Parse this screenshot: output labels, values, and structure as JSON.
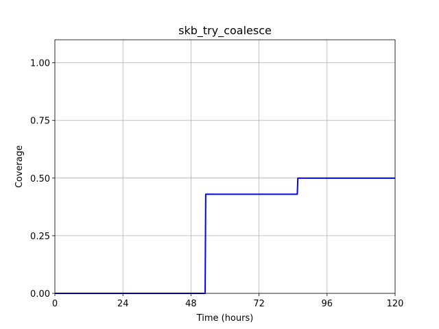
{
  "chart_data": {
    "type": "line",
    "title": "skb_try_coalesce",
    "xlabel": "Time (hours)",
    "ylabel": "Coverage",
    "xlim": [
      0,
      120
    ],
    "ylim": [
      0,
      1.1
    ],
    "xticks": [
      0,
      24,
      48,
      72,
      96,
      120
    ],
    "xtick_labels": [
      "0",
      "24",
      "48",
      "72",
      "96",
      "120"
    ],
    "yticks": [
      0,
      0.25,
      0.5,
      0.75,
      1.0
    ],
    "ytick_labels": [
      "0.00",
      "0.25",
      "0.50",
      "0.75",
      "1.00"
    ],
    "grid": true,
    "series": [
      {
        "color": "#0000ff",
        "x": [
          0,
          53,
          53.2,
          85.5,
          85.7,
          120
        ],
        "y": [
          0,
          0,
          0.43,
          0.43,
          0.5,
          0.5
        ]
      }
    ]
  }
}
